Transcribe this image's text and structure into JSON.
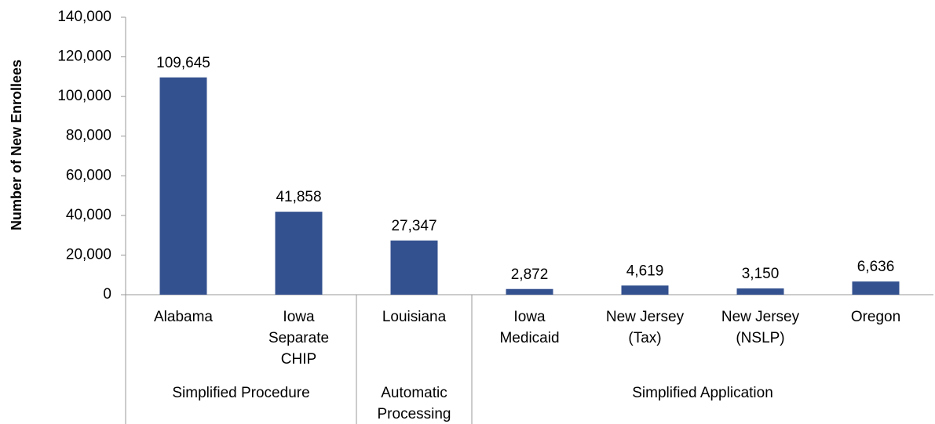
{
  "chart_data": {
    "type": "bar",
    "y_label": "Number of New Enrollees",
    "color": "#34518f",
    "ylim": [
      0,
      140000
    ],
    "yticks": [
      0,
      {
        "value": 20000,
        "label": "20,000"
      },
      {
        "value": 40000,
        "label": "40,000"
      },
      {
        "value": 60000,
        "label": "60,000"
      },
      {
        "value": 80000,
        "label": "80,000"
      },
      {
        "value": 100000,
        "label": "100,000"
      },
      {
        "value": 120000,
        "label": "120,000"
      },
      {
        "value": 140000,
        "label": "140,000"
      }
    ],
    "groups": [
      {
        "name": "Simplified Procedure",
        "categories": [
          "Alabama",
          "Iowa\nSeparate\nCHIP"
        ],
        "values": [
          109645,
          41858
        ],
        "value_labels": [
          "109,645",
          "41,858"
        ]
      },
      {
        "name": "Automatic\nProcessing",
        "categories": [
          "Louisiana"
        ],
        "values": [
          27347
        ],
        "value_labels": [
          "27,347"
        ]
      },
      {
        "name": "Simplified Application",
        "categories": [
          "Iowa\nMedicaid",
          "New Jersey\n(Tax)",
          "New Jersey\n(NSLP)",
          "Oregon"
        ],
        "values": [
          2872,
          4619,
          3150,
          6636
        ],
        "value_labels": [
          "2,872",
          "4,619",
          "3,150",
          "6,636"
        ]
      }
    ]
  }
}
